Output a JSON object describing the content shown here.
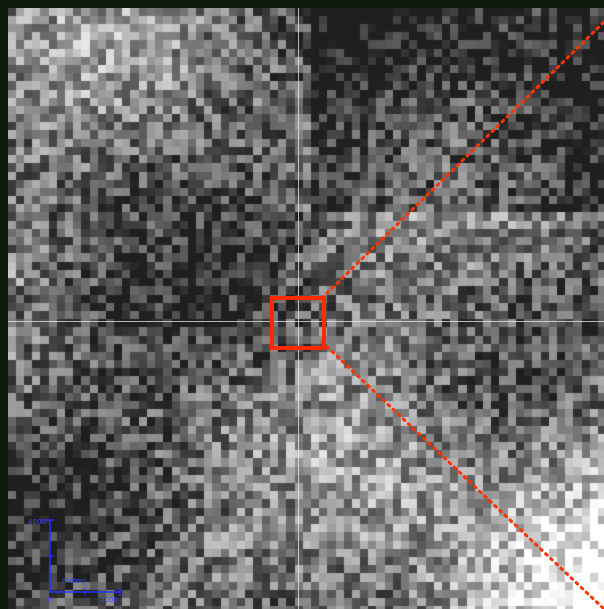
{
  "viewer": {
    "scale_bar": {
      "y_max_label": "4000",
      "unit_label": "meters",
      "x_max_label": "2000",
      "origin_label": "0",
      "color": "#2233ff"
    },
    "selection_color": "#ff2a00",
    "crosshair_color": "#e6e6e6",
    "background_color": "#0c1a0c",
    "zoom_line_color": "#ff3300"
  }
}
